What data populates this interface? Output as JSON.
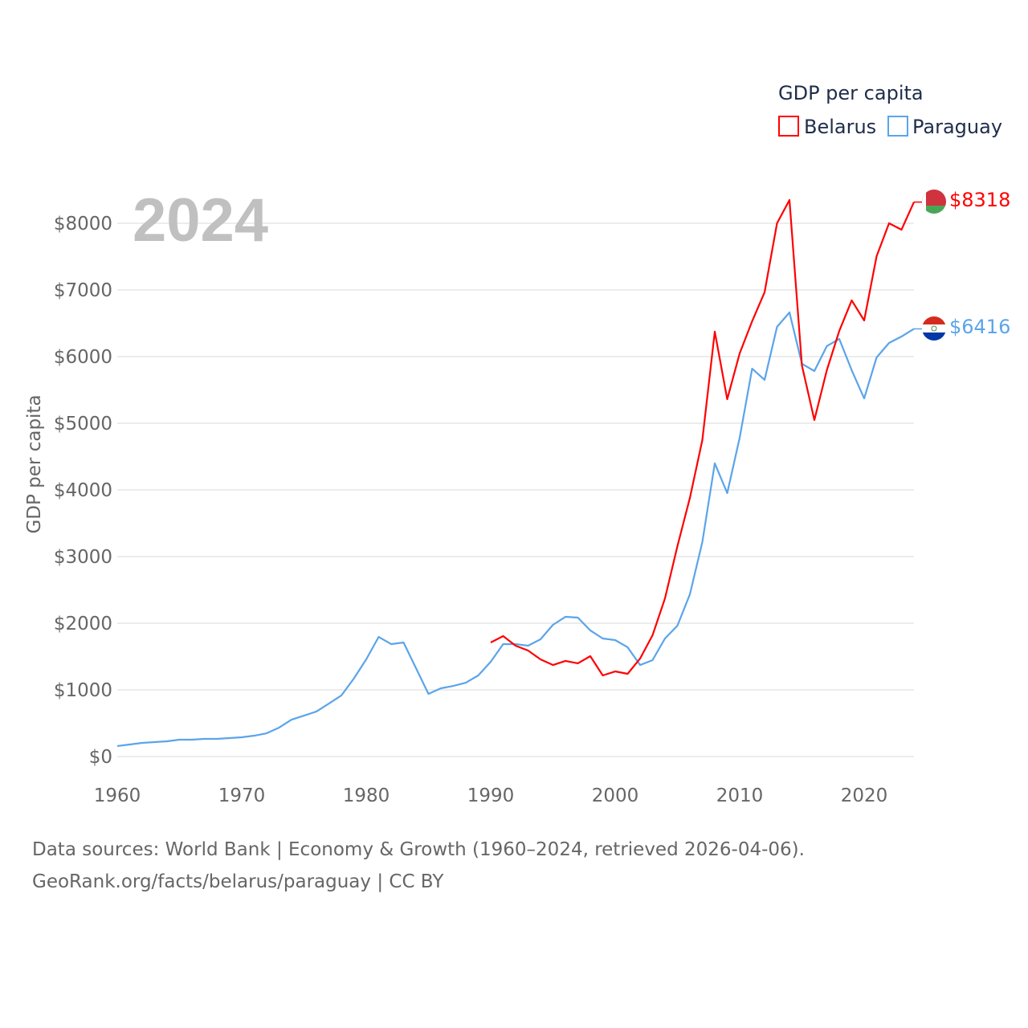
{
  "chart_data": {
    "type": "line",
    "title": "GDP per capita",
    "year_label": "2024",
    "ylabel": "GDP per capita",
    "xlabel": "",
    "xlim": [
      1960,
      2024
    ],
    "ylim": [
      0,
      8500
    ],
    "x_ticks": [
      1960,
      1970,
      1980,
      1990,
      2000,
      2010,
      2020
    ],
    "y_ticks": [
      0,
      1000,
      2000,
      3000,
      4000,
      5000,
      6000,
      7000,
      8000
    ],
    "y_tick_labels": [
      "$0",
      "$1000",
      "$2000",
      "$3000",
      "$4000",
      "$5000",
      "$6000",
      "$7000",
      "$8000"
    ],
    "grid": true,
    "legend_position": "top-right",
    "series": [
      {
        "name": "Belarus",
        "color": "#ff0000",
        "end_label": "$8318",
        "start_year": 1990,
        "values": [
          1711,
          1807,
          1663,
          1590,
          1458,
          1373,
          1434,
          1398,
          1506,
          1217,
          1277,
          1241,
          1470,
          1819,
          2373,
          3157,
          3880,
          4747,
          6374,
          5361,
          6048,
          6530,
          6964,
          8000,
          8349,
          5867,
          5048,
          5795,
          6385,
          6843,
          6542,
          7506,
          8000,
          7904,
          8318
        ]
      },
      {
        "name": "Paraguay",
        "color": "#5ba4ea",
        "end_label": "$6416",
        "start_year": 1960,
        "values": [
          157,
          181,
          205,
          217,
          229,
          253,
          253,
          265,
          265,
          277,
          289,
          313,
          349,
          434,
          554,
          614,
          675,
          795,
          916,
          1169,
          1458,
          1795,
          1687,
          1711,
          1325,
          940,
          1024,
          1060,
          1108,
          1217,
          1422,
          1687,
          1687,
          1663,
          1759,
          1976,
          2096,
          2084,
          1892,
          1771,
          1747,
          1639,
          1373,
          1446,
          1771,
          1964,
          2434,
          3217,
          4398,
          3952,
          4783,
          5819,
          5651,
          6446,
          6663,
          5892,
          5783,
          6157,
          6265,
          5795,
          5373,
          5988,
          6205,
          6301,
          6416
        ]
      }
    ]
  },
  "footer": {
    "line1": "Data sources: World Bank | Economy & Growth (1960–2024, retrieved 2026-04-06).",
    "line2": "GeoRank.org/facts/belarus/paraguay | CC BY"
  }
}
